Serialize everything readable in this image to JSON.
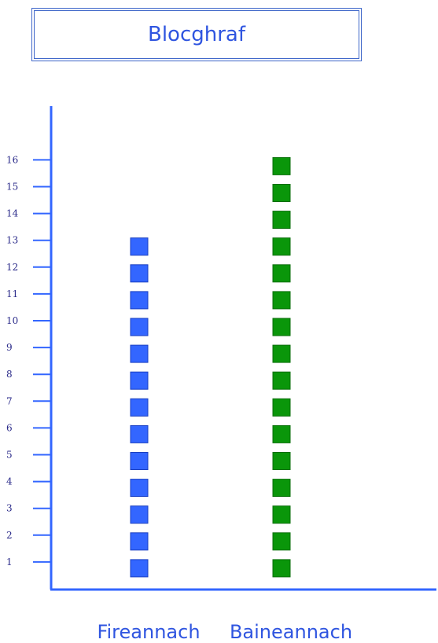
{
  "title": "Blocghraf",
  "chart_data": {
    "type": "bar",
    "title": "Blocghraf",
    "categories": [
      "Fireannach",
      "Baineannach"
    ],
    "values": [
      13,
      16
    ],
    "y_ticks": [
      "1",
      "2",
      "3",
      "4",
      "5",
      "6",
      "7",
      "8",
      "9",
      "10",
      "11",
      "12",
      "13",
      "14",
      "15",
      "16"
    ],
    "ylim": [
      0,
      17
    ],
    "grid": false,
    "colors": {
      "Fireannach": "#3366ff",
      "Baineannach": "#0a960a",
      "axis": "#3366ff"
    }
  }
}
